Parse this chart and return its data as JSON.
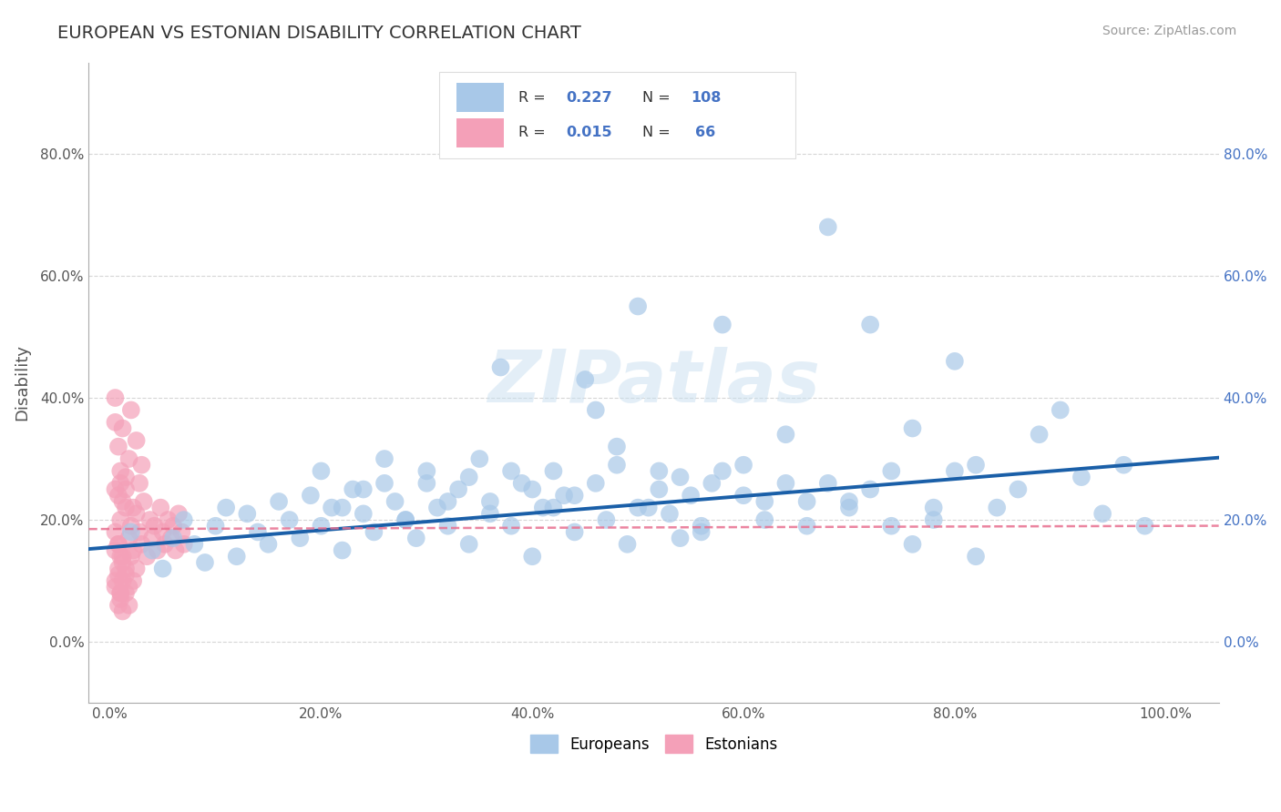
{
  "title": "EUROPEAN VS ESTONIAN DISABILITY CORRELATION CHART",
  "source": "Source: ZipAtlas.com",
  "ylabel": "Disability",
  "xticks": [
    0.0,
    0.2,
    0.4,
    0.6,
    0.8,
    1.0
  ],
  "xtick_labels": [
    "0.0%",
    "20.0%",
    "40.0%",
    "60.0%",
    "80.0%",
    "100.0%"
  ],
  "yticks": [
    0.0,
    0.2,
    0.4,
    0.6,
    0.8
  ],
  "ytick_labels": [
    "0.0%",
    "20.0%",
    "40.0%",
    "60.0%",
    "80.0%"
  ],
  "european_color": "#a8c8e8",
  "estonian_color": "#f4a0b8",
  "european_line_color": "#1a5fa8",
  "estonian_line_color": "#e87090",
  "R_european": 0.227,
  "N_european": 108,
  "R_estonian": 0.015,
  "N_estonian": 66,
  "grid_color": "#cccccc",
  "background_color": "#ffffff",
  "title_color": "#333333",
  "label_color": "#4472c4",
  "watermark_text": "ZIPatlas",
  "legend_european": "Europeans",
  "legend_estonian": "Estonians",
  "eu_scatter_x": [
    0.02,
    0.04,
    0.05,
    0.06,
    0.07,
    0.08,
    0.09,
    0.1,
    0.11,
    0.12,
    0.13,
    0.14,
    0.15,
    0.16,
    0.17,
    0.18,
    0.19,
    0.2,
    0.21,
    0.22,
    0.23,
    0.24,
    0.25,
    0.26,
    0.27,
    0.28,
    0.29,
    0.3,
    0.31,
    0.32,
    0.33,
    0.34,
    0.35,
    0.36,
    0.37,
    0.38,
    0.39,
    0.4,
    0.41,
    0.42,
    0.43,
    0.44,
    0.45,
    0.46,
    0.47,
    0.48,
    0.49,
    0.5,
    0.51,
    0.52,
    0.53,
    0.54,
    0.55,
    0.56,
    0.57,
    0.58,
    0.6,
    0.62,
    0.64,
    0.66,
    0.68,
    0.7,
    0.72,
    0.74,
    0.76,
    0.78,
    0.8,
    0.82,
    0.84,
    0.86,
    0.88,
    0.9,
    0.92,
    0.94,
    0.96,
    0.98,
    0.2,
    0.22,
    0.24,
    0.26,
    0.28,
    0.3,
    0.32,
    0.34,
    0.36,
    0.38,
    0.4,
    0.42,
    0.44,
    0.46,
    0.48,
    0.5,
    0.52,
    0.54,
    0.56,
    0.58,
    0.6,
    0.62,
    0.64,
    0.66,
    0.68,
    0.7,
    0.72,
    0.74,
    0.76,
    0.78,
    0.8,
    0.82
  ],
  "eu_scatter_y": [
    0.18,
    0.15,
    0.12,
    0.17,
    0.2,
    0.16,
    0.13,
    0.19,
    0.22,
    0.14,
    0.21,
    0.18,
    0.16,
    0.23,
    0.2,
    0.17,
    0.24,
    0.19,
    0.22,
    0.15,
    0.25,
    0.21,
    0.18,
    0.26,
    0.23,
    0.2,
    0.17,
    0.28,
    0.22,
    0.19,
    0.25,
    0.16,
    0.3,
    0.23,
    0.45,
    0.19,
    0.26,
    0.14,
    0.22,
    0.28,
    0.24,
    0.18,
    0.43,
    0.38,
    0.2,
    0.32,
    0.16,
    0.55,
    0.22,
    0.28,
    0.21,
    0.17,
    0.24,
    0.19,
    0.26,
    0.52,
    0.29,
    0.23,
    0.34,
    0.19,
    0.26,
    0.23,
    0.52,
    0.28,
    0.35,
    0.2,
    0.46,
    0.29,
    0.22,
    0.25,
    0.34,
    0.38,
    0.27,
    0.21,
    0.29,
    0.19,
    0.28,
    0.22,
    0.25,
    0.3,
    0.2,
    0.26,
    0.23,
    0.27,
    0.21,
    0.28,
    0.25,
    0.22,
    0.24,
    0.26,
    0.29,
    0.22,
    0.25,
    0.27,
    0.18,
    0.28,
    0.24,
    0.2,
    0.26,
    0.23,
    0.68,
    0.22,
    0.25,
    0.19,
    0.16,
    0.22,
    0.28,
    0.14
  ],
  "est_scatter_x": [
    0.005,
    0.008,
    0.01,
    0.012,
    0.015,
    0.018,
    0.02,
    0.022,
    0.025,
    0.028,
    0.03,
    0.032,
    0.035,
    0.038,
    0.04,
    0.042,
    0.045,
    0.048,
    0.05,
    0.052,
    0.055,
    0.058,
    0.06,
    0.062,
    0.065,
    0.068,
    0.07,
    0.005,
    0.008,
    0.01,
    0.012,
    0.015,
    0.018,
    0.02,
    0.022,
    0.025,
    0.028,
    0.03,
    0.005,
    0.008,
    0.01,
    0.012,
    0.015,
    0.018,
    0.02,
    0.022,
    0.025,
    0.005,
    0.008,
    0.01,
    0.012,
    0.015,
    0.018,
    0.005,
    0.008,
    0.01,
    0.012,
    0.015,
    0.005,
    0.008,
    0.01,
    0.005,
    0.008,
    0.01,
    0.012,
    0.015
  ],
  "est_scatter_y": [
    0.18,
    0.16,
    0.2,
    0.14,
    0.22,
    0.17,
    0.19,
    0.15,
    0.21,
    0.18,
    0.16,
    0.23,
    0.14,
    0.2,
    0.17,
    0.19,
    0.15,
    0.22,
    0.18,
    0.16,
    0.2,
    0.17,
    0.19,
    0.15,
    0.21,
    0.18,
    0.16,
    0.36,
    0.32,
    0.28,
    0.35,
    0.25,
    0.3,
    0.38,
    0.22,
    0.33,
    0.26,
    0.29,
    0.1,
    0.12,
    0.08,
    0.13,
    0.11,
    0.09,
    0.14,
    0.1,
    0.12,
    0.4,
    0.06,
    0.07,
    0.05,
    0.08,
    0.06,
    0.25,
    0.24,
    0.26,
    0.23,
    0.27,
    0.15,
    0.16,
    0.14,
    0.09,
    0.11,
    0.08,
    0.1,
    0.12
  ]
}
